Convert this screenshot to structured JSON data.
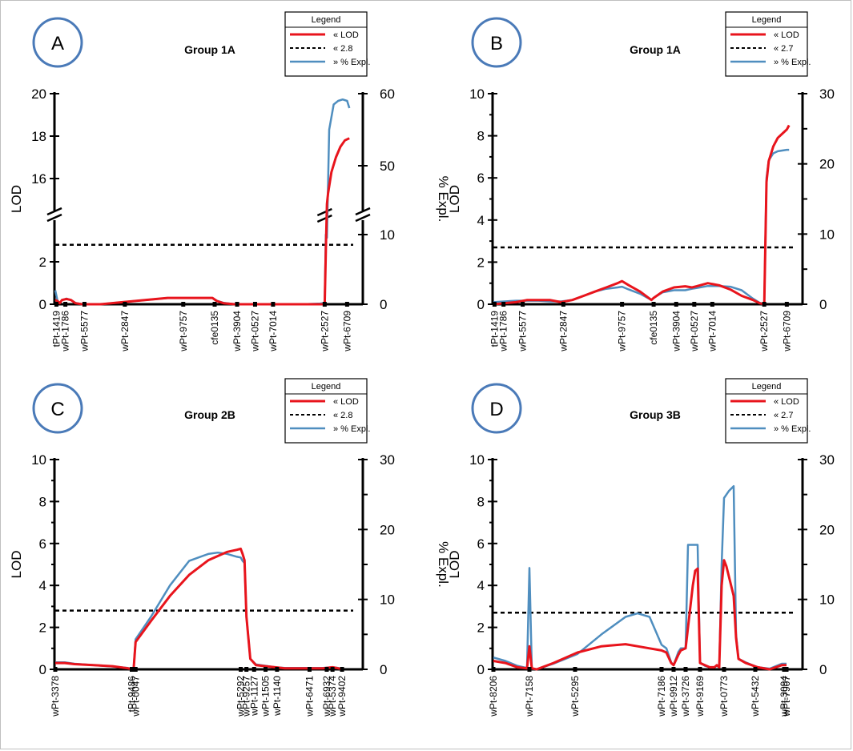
{
  "chart_data": [
    {
      "type": "line",
      "panel": "A",
      "title": "Group 1A",
      "ylabel": "LOD",
      "y2label": "% Expl.",
      "ylim": [
        0,
        20
      ],
      "y_ticks": [
        "0",
        "2",
        "16",
        "18",
        "20"
      ],
      "y2_ticks": [
        "0",
        "10",
        "50",
        "60"
      ],
      "axis_break": true,
      "markers": [
        "tPt-1419",
        "wPt-1786",
        "wPt-5577",
        "wPt-2847",
        "wPt-9757",
        "cfe0135",
        "wPt-3904",
        "wPt-0527",
        "wPt-7014",
        "wPt-2527",
        "wPt-6709"
      ],
      "marker_pos": [
        0.5,
        4.5,
        13,
        31,
        57,
        71,
        81,
        89,
        97,
        120,
        130
      ],
      "xlim": [
        0,
        132
      ],
      "legend": {
        "title": "Legend",
        "entries": [
          "« LOD",
          "« 2.8",
          "» % Expl."
        ],
        "placement": "top-right"
      },
      "threshold": 2.8,
      "series": [
        {
          "name": "LOD",
          "color": "#e8141c",
          "axis": "left",
          "x": [
            0,
            1,
            2,
            3,
            5,
            7,
            9,
            12,
            16,
            20,
            30,
            40,
            50,
            60,
            70,
            72,
            75,
            80,
            90,
            100,
            110,
            118,
            120,
            120.5,
            121,
            121.5,
            123,
            125,
            127,
            129,
            131
          ],
          "y": [
            0.2,
            0.15,
            0.05,
            0.2,
            0.25,
            0.2,
            0.05,
            0,
            0,
            0,
            0.1,
            0.2,
            0.3,
            0.3,
            0.3,
            0.15,
            0.05,
            0,
            0,
            0,
            0,
            0,
            0,
            2.5,
            14.8,
            15.3,
            16.3,
            17.0,
            17.5,
            17.8,
            17.9
          ]
        },
        {
          "name": "% Expl.",
          "color": "#4f8ebf",
          "axis": "right",
          "x": [
            0,
            1,
            2,
            3,
            5,
            7,
            9,
            12,
            16,
            20,
            30,
            40,
            50,
            60,
            70,
            72,
            75,
            80,
            90,
            100,
            110,
            118,
            120,
            120.5,
            121,
            122,
            124,
            126,
            128,
            130,
            131
          ],
          "y": [
            2.0,
            0.5,
            0.2,
            0.6,
            0.8,
            0.6,
            0.2,
            0,
            0,
            0,
            0.3,
            0.6,
            0.9,
            0.9,
            0.9,
            0.5,
            0.2,
            0,
            0,
            0,
            0,
            0.1,
            0.2,
            10,
            40,
            55,
            58.5,
            59,
            59.2,
            59,
            58
          ]
        }
      ]
    },
    {
      "type": "line",
      "panel": "B",
      "title": "Group 1A",
      "ylabel": "LOD",
      "y2label": "% Expl.",
      "ylim": [
        0,
        10
      ],
      "y_ticks": [
        "0",
        "2",
        "4",
        "6",
        "8",
        "10"
      ],
      "y2_ticks": [
        "0",
        "10",
        "20",
        "30"
      ],
      "axis_break": false,
      "markers": [
        "tPt-1419",
        "wPt-1786",
        "wPt-5577",
        "wPt-2847",
        "wPt-9757",
        "cfe0135",
        "wPt-3904",
        "wPt-0527",
        "wPt-7014",
        "wPt-2527",
        "wPt-6709"
      ],
      "marker_pos": [
        0.5,
        4.5,
        13,
        31,
        57,
        71,
        81,
        89,
        97,
        120,
        130
      ],
      "xlim": [
        0,
        132
      ],
      "legend": {
        "title": "Legend",
        "entries": [
          "« LOD",
          "« 2.7",
          "» % Expl."
        ],
        "placement": "top-right"
      },
      "threshold": 2.7,
      "series": [
        {
          "name": "LOD",
          "color": "#e8141c",
          "axis": "left",
          "x": [
            0,
            5,
            10,
            15,
            20,
            25,
            30,
            35,
            40,
            45,
            50,
            55,
            57,
            60,
            65,
            70,
            71,
            75,
            80,
            85,
            88,
            90,
            95,
            100,
            105,
            110,
            115,
            118,
            120,
            121,
            122,
            124,
            126,
            128,
            130,
            131
          ],
          "y": [
            0,
            0.05,
            0.1,
            0.2,
            0.2,
            0.2,
            0.1,
            0.2,
            0.4,
            0.6,
            0.8,
            1.0,
            1.1,
            0.9,
            0.6,
            0.2,
            0.3,
            0.6,
            0.8,
            0.85,
            0.8,
            0.85,
            1.0,
            0.9,
            0.7,
            0.4,
            0.2,
            0.05,
            0,
            5.8,
            6.8,
            7.5,
            7.9,
            8.1,
            8.3,
            8.5
          ]
        },
        {
          "name": "% Expl.",
          "color": "#4f8ebf",
          "axis": "right",
          "x": [
            0,
            5,
            10,
            15,
            20,
            25,
            30,
            35,
            40,
            45,
            50,
            55,
            57,
            60,
            65,
            70,
            71,
            75,
            80,
            85,
            88,
            90,
            95,
            100,
            105,
            110,
            115,
            118,
            120,
            121,
            122,
            124,
            126,
            128,
            130,
            131
          ],
          "y": [
            0.3,
            0.4,
            0.5,
            0.5,
            0.5,
            0.4,
            0.4,
            0.6,
            1.2,
            1.8,
            2.2,
            2.4,
            2.5,
            2.1,
            1.5,
            0.6,
            0.9,
            1.7,
            2.0,
            2.0,
            2.2,
            2.3,
            2.6,
            2.6,
            2.5,
            2.0,
            0.8,
            0.2,
            0,
            18,
            20.5,
            21.5,
            21.8,
            21.9,
            22,
            22
          ]
        }
      ]
    },
    {
      "type": "line",
      "panel": "C",
      "title": "Group 2B",
      "ylabel": "LOD",
      "y2label": "% Expl.",
      "ylim": [
        0,
        10
      ],
      "y_ticks": [
        "0",
        "2",
        "4",
        "6",
        "8",
        "10"
      ],
      "y2_ticks": [
        "0",
        "10",
        "20",
        "30"
      ],
      "axis_break": false,
      "markers": [
        "wPt-3378",
        "tPt-9486",
        "wPt-0047",
        "wPt-5292",
        "wPt-9257",
        "wPt-1127",
        "wPt-1505",
        "wPt-1140",
        "wPt-6471",
        "wPt-6932",
        "wPt-5374",
        "wPt-9402"
      ],
      "marker_pos": [
        0,
        40,
        42,
        97,
        100,
        104,
        110,
        116,
        133,
        142,
        145,
        150
      ],
      "xlim": [
        0,
        155
      ],
      "legend": {
        "title": "Legend",
        "entries": [
          "« LOD",
          "« 2.8",
          "» % Expl."
        ],
        "placement": "top-right"
      },
      "threshold": 2.8,
      "series": [
        {
          "name": "LOD",
          "color": "#e8141c",
          "axis": "left",
          "x": [
            0,
            5,
            10,
            20,
            30,
            38,
            40,
            41,
            42,
            50,
            60,
            70,
            80,
            90,
            95,
            97,
            98,
            99,
            100,
            102,
            105,
            110,
            115,
            120,
            130,
            140,
            145,
            148,
            150
          ],
          "y": [
            0.3,
            0.3,
            0.25,
            0.2,
            0.15,
            0.05,
            0,
            0.05,
            1.3,
            2.3,
            3.5,
            4.5,
            5.2,
            5.6,
            5.7,
            5.75,
            5.5,
            5.2,
            2.5,
            0.5,
            0.2,
            0.15,
            0.1,
            0.05,
            0.05,
            0.05,
            0.1,
            0.05,
            0
          ]
        },
        {
          "name": "% Expl.",
          "color": "#4f8ebf",
          "axis": "right",
          "x": [
            0,
            5,
            10,
            20,
            30,
            38,
            40,
            41,
            42,
            50,
            60,
            70,
            80,
            85,
            90,
            95,
            97,
            98,
            99,
            100,
            102,
            105,
            110,
            115,
            120,
            130,
            140,
            145,
            148,
            150
          ],
          "y": [
            1.0,
            1.0,
            0.8,
            0.6,
            0.4,
            0.2,
            0,
            0.2,
            4.3,
            7.5,
            12,
            15.5,
            16.5,
            16.7,
            16.5,
            16.1,
            16.0,
            15.5,
            15.2,
            7.5,
            1.5,
            0.7,
            0.5,
            0.3,
            0.2,
            0.2,
            0.2,
            0.3,
            0.2,
            0
          ]
        }
      ]
    },
    {
      "type": "line",
      "panel": "D",
      "title": "Group 3B",
      "ylabel": "LOD",
      "y2label": "% Expl.",
      "ylim": [
        0,
        10
      ],
      "y_ticks": [
        "0",
        "2",
        "4",
        "6",
        "8",
        "10"
      ],
      "y2_ticks": [
        "0",
        "10",
        "20",
        "30"
      ],
      "axis_break": false,
      "markers": [
        "wPt-8206",
        "wPt-7158",
        "wPt-5295",
        "wPt-7186",
        "wPt-9912",
        "wPt-3726",
        "wPt-9169",
        "wPt-0773",
        "wPt-5432",
        "wPt-3094",
        "wPt-7907"
      ],
      "marker_pos": [
        0,
        15,
        34,
        70,
        75,
        80,
        86,
        96,
        109,
        121,
        122
      ],
      "xlim": [
        0,
        124
      ],
      "legend": {
        "title": "Legend",
        "entries": [
          "« LOD",
          "« 2.7",
          "» % Expl."
        ],
        "placement": "top-right"
      },
      "threshold": 2.7,
      "series": [
        {
          "name": "LOD",
          "color": "#e8141c",
          "axis": "left",
          "x": [
            0,
            5,
            10,
            14,
            15,
            16,
            18,
            25,
            35,
            45,
            55,
            60,
            65,
            70,
            72,
            74,
            75,
            77,
            78,
            80,
            82,
            83,
            84,
            85,
            86,
            88,
            90,
            92,
            93,
            94,
            95,
            96,
            97,
            100,
            101,
            102,
            105,
            110,
            115,
            120,
            122
          ],
          "y": [
            0.4,
            0.3,
            0.1,
            0.05,
            1.1,
            0.05,
            0,
            0.3,
            0.8,
            1.1,
            1.2,
            1.1,
            1.0,
            0.9,
            0.8,
            0.3,
            0.2,
            0.7,
            0.9,
            1.0,
            3.0,
            4.0,
            4.7,
            4.8,
            0.3,
            0.2,
            0.1,
            0.1,
            0.2,
            0.1,
            4.0,
            5.2,
            4.9,
            3.5,
            1.5,
            0.5,
            0.3,
            0.1,
            0,
            0.2,
            0.2
          ]
        },
        {
          "name": "% Expl.",
          "color": "#4f8ebf",
          "axis": "right",
          "x": [
            0,
            5,
            10,
            14,
            15,
            16,
            18,
            25,
            35,
            45,
            55,
            60,
            65,
            70,
            72,
            74,
            75,
            77,
            78,
            80,
            81,
            82,
            84,
            85,
            86,
            88,
            90,
            92,
            93,
            94,
            95,
            96,
            98,
            100,
            101,
            102,
            105,
            110,
            115,
            120,
            122
          ],
          "y": [
            1.7,
            1.2,
            0.5,
            0.2,
            14.5,
            0.1,
            0,
            0.8,
            2.2,
            5.0,
            7.5,
            8.0,
            7.5,
            3.5,
            3.0,
            1.0,
            0.6,
            2.5,
            3.0,
            3.0,
            17.8,
            17.8,
            17.8,
            17.8,
            1.0,
            0.5,
            0.3,
            0.3,
            0.5,
            0.3,
            15,
            24.5,
            25.5,
            26.2,
            5,
            1.5,
            1.0,
            0.3,
            0.1,
            0.8,
            0.8
          ]
        }
      ]
    }
  ]
}
